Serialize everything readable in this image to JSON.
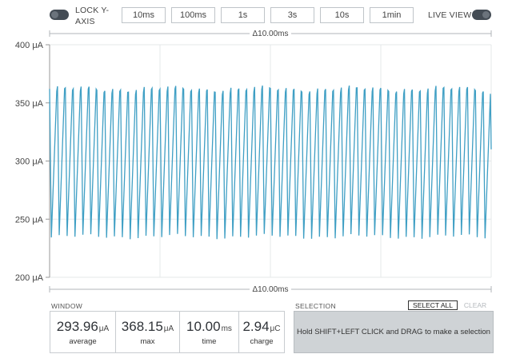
{
  "toolbar": {
    "lock_label": "LOCK Y-AXIS",
    "live_label": "LIVE VIEW",
    "time_windows": [
      "10ms",
      "100ms",
      "1s",
      "3s",
      "10s",
      "1min"
    ]
  },
  "chart_data": {
    "type": "line",
    "y_unit": "μA",
    "yticks": [
      "400 μA",
      "350 μA",
      "300 μA",
      "250 μA",
      "200 μA"
    ],
    "ylim": [
      200,
      400
    ],
    "window_duration_ms": 10.0,
    "delta_label_top": "Δ10.00ms",
    "delta_label_bottom": "Δ10.00ms",
    "series": [
      {
        "color": "#3f9fc4",
        "waveform": "sawtooth",
        "cycles": 56,
        "min_ua": 232,
        "max_ua": 366
      }
    ],
    "grid": true
  },
  "window": {
    "title": "WINDOW",
    "stats": [
      {
        "value": "293.96",
        "unit": "μA",
        "label": "average"
      },
      {
        "value": "368.15",
        "unit": "μA",
        "label": "max"
      },
      {
        "value": "10.00",
        "unit": "ms",
        "label": "time"
      },
      {
        "value": "2.94",
        "unit": "μC",
        "label": "charge"
      }
    ]
  },
  "selection": {
    "title": "SELECTION",
    "select_all_label": "SELECT ALL",
    "clear_label": "CLEAR",
    "hint": "Hold SHIFT+LEFT CLICK and DRAG to make a selection"
  }
}
